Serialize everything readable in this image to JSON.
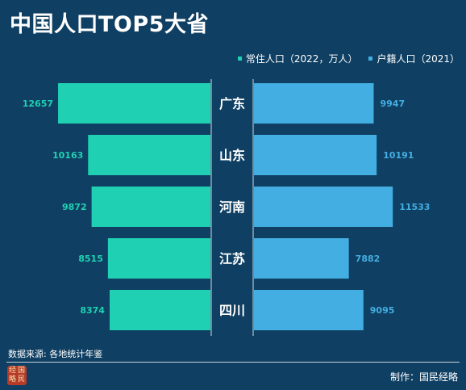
{
  "chart_data": {
    "type": "bar",
    "title": "中国人口TOP5大省",
    "categories": [
      "广东",
      "山东",
      "河南",
      "江苏",
      "四川"
    ],
    "series": [
      {
        "name": "常住人口（2022，万人）",
        "color": "#1fd1b2",
        "values": [
          12657,
          10163,
          9872,
          8515,
          8374
        ]
      },
      {
        "name": "户籍人口（2021）",
        "color": "#43aee2",
        "values": [
          9947,
          10191,
          11533,
          7882,
          9095
        ]
      }
    ],
    "label_colors": [
      "#1fd1b2",
      "#43aee2"
    ]
  },
  "footer": {
    "source": "数据来源: 各地统计年鉴",
    "credit": "制作：国民经略",
    "logo_text": [
      "经",
      "国",
      "略",
      "民"
    ]
  }
}
